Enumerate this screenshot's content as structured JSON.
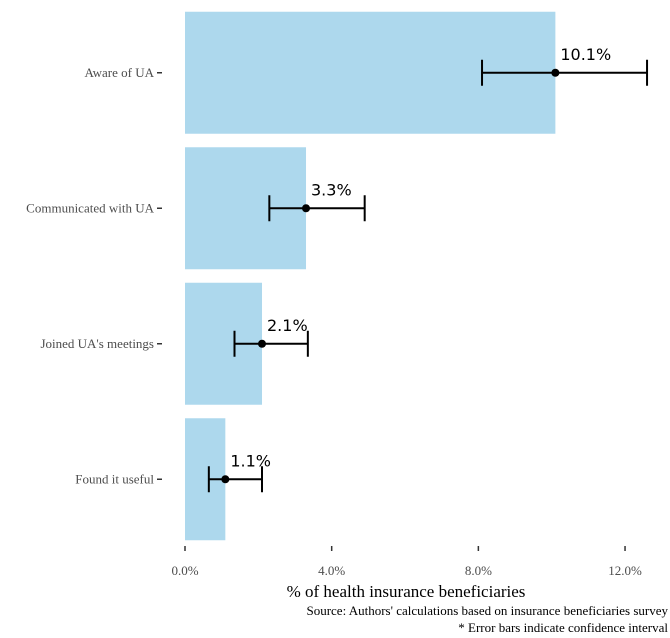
{
  "chart_data": {
    "type": "bar",
    "orientation": "horizontal",
    "categories": [
      "Aware of UA",
      "Communicated with UA",
      "Joined UA's meetings",
      "Found it useful"
    ],
    "values": [
      10.1,
      3.3,
      2.1,
      1.1
    ],
    "error_low": [
      8.1,
      2.3,
      1.35,
      0.65
    ],
    "error_high": [
      12.6,
      4.9,
      3.35,
      2.1
    ],
    "data_labels": [
      "10.1%",
      "3.3%",
      "2.1%",
      "1.1%"
    ],
    "x_ticks": [
      0,
      4,
      8,
      12
    ],
    "x_tick_labels": [
      "0.0%",
      "4.0%",
      "8.0%",
      "12.0%"
    ],
    "xlim": [
      0,
      12.6
    ],
    "xlabel": "% of health insurance beneficiaries",
    "ylabel": "",
    "title": "",
    "grid": false,
    "bar_color": "#add8ed",
    "point_color": "#000000",
    "errorbar_color": "#000000"
  },
  "captions": {
    "source": "Source: Authors' calculations based on insurance beneficiaries survey",
    "note": "* Error bars indicate confidence interval"
  }
}
